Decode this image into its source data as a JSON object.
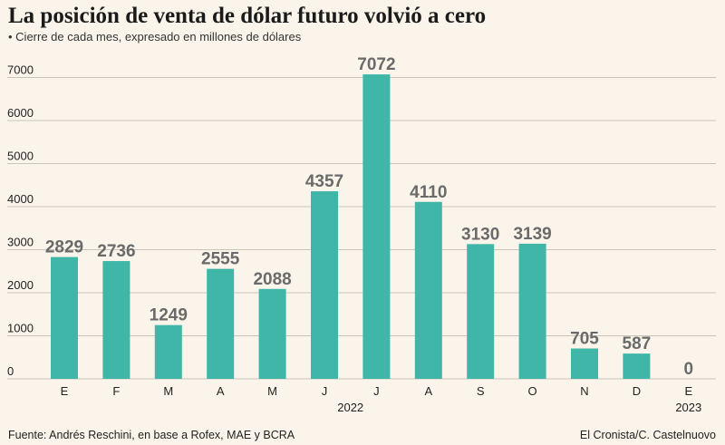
{
  "chart_data": {
    "type": "bar",
    "title": "La posición de venta de dólar futuro volvió a cero",
    "subtitle": "• Cierre de cada mes, expresado en millones de dólares",
    "categories": [
      "E",
      "F",
      "M",
      "A",
      "M",
      "J",
      "J",
      "A",
      "S",
      "O",
      "N",
      "D",
      "E"
    ],
    "values": [
      2829,
      2736,
      1249,
      2555,
      2088,
      4357,
      7072,
      4110,
      3130,
      3139,
      705,
      587,
      0
    ],
    "value_labels": [
      "2829",
      "2736",
      "1249",
      "2555",
      "2088",
      "4357",
      "7072",
      "4110",
      "3130",
      "3139",
      "705",
      "587",
      "0"
    ],
    "year_labels": [
      "2022",
      "2023"
    ],
    "yticks": [
      0,
      1000,
      2000,
      3000,
      4000,
      5000,
      6000,
      7000
    ],
    "ytick_labels": [
      "0",
      "1000",
      "2000",
      "3000",
      "4000",
      "5000",
      "6000",
      "7000"
    ],
    "ylim": [
      0,
      7500
    ],
    "grid": true,
    "xlabel": "",
    "ylabel": "",
    "source": "Fuente: Andrés Reschini, en base a Rofex, MAE y BCRA",
    "credit": "El Cronista/C. Castelnuovo",
    "colors": {
      "bar": "#3fb6a8",
      "grid": "#c9c4ba",
      "label": "#6a6a6a",
      "background": "#faf4ea"
    }
  }
}
